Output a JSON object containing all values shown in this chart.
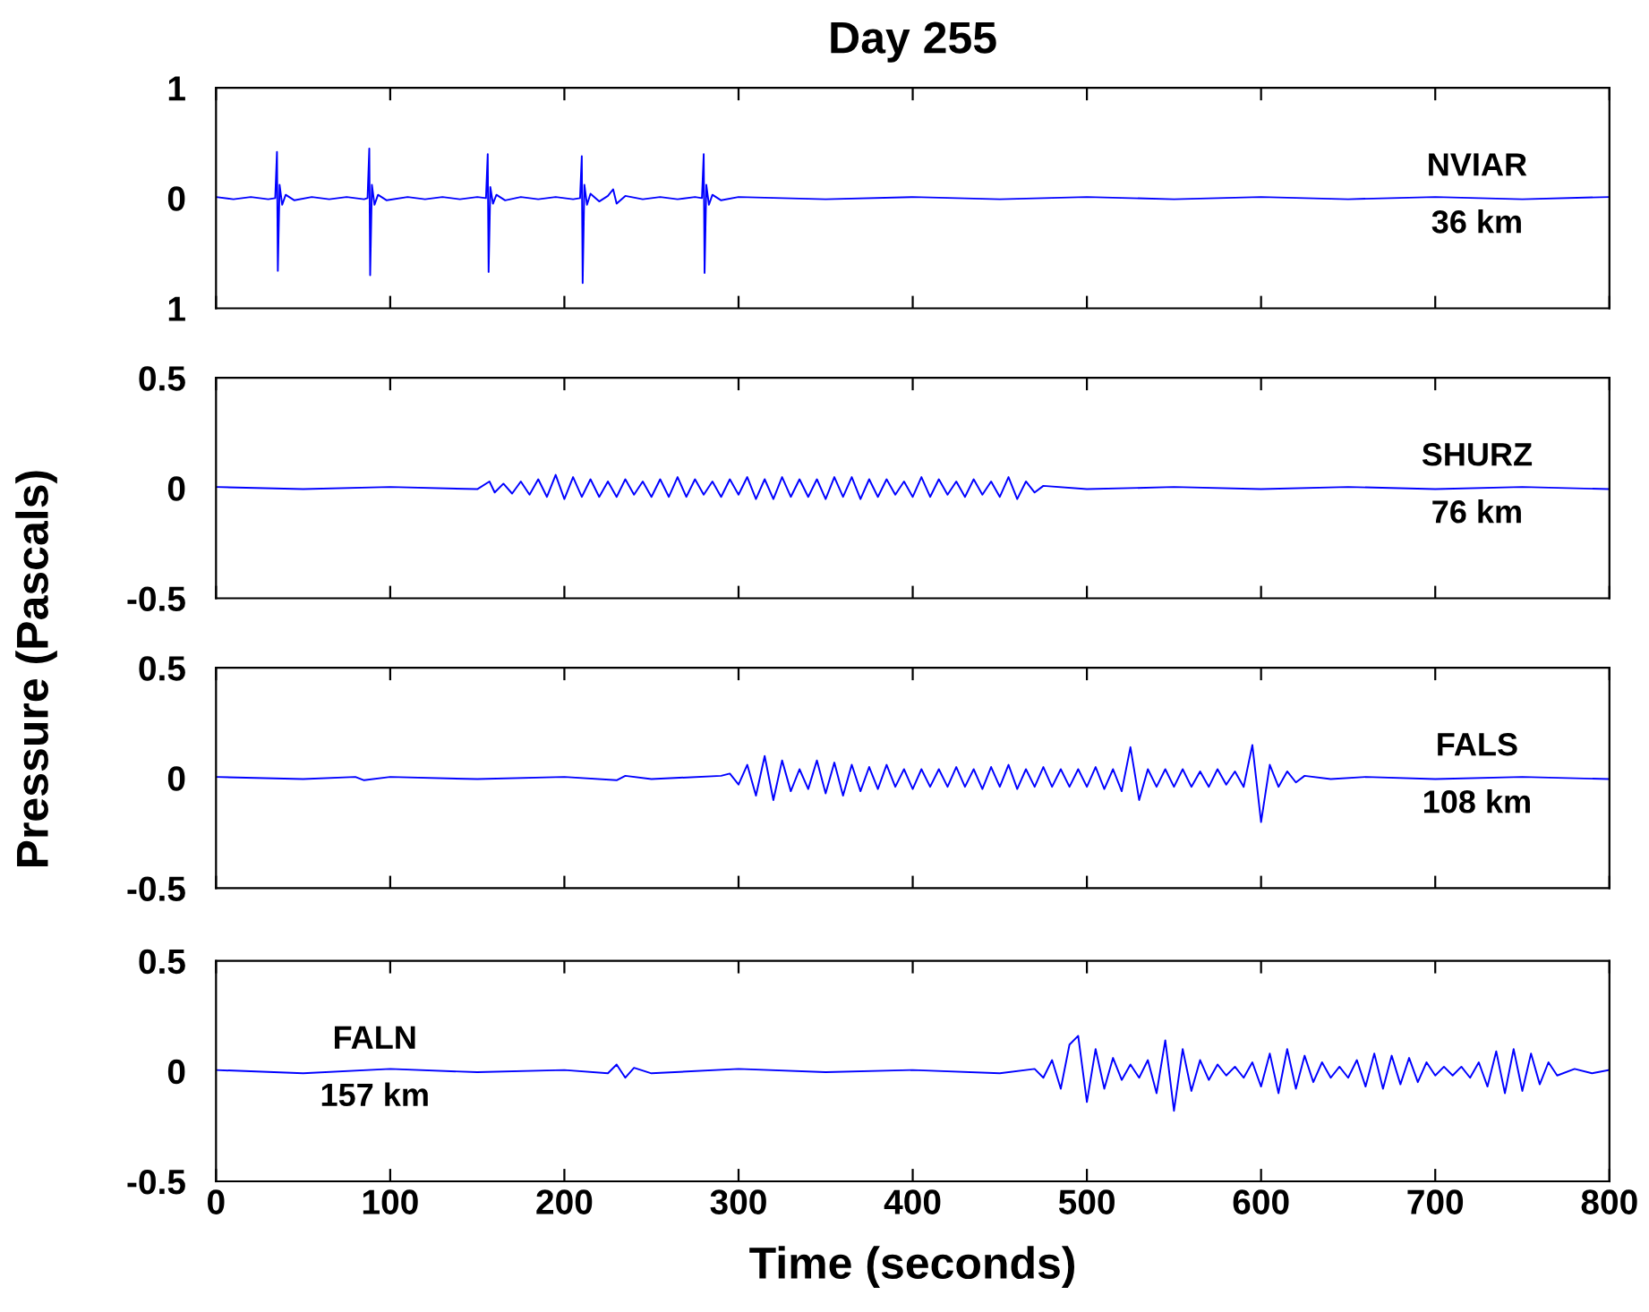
{
  "chart_data": [
    {
      "type": "line",
      "title": "Day 255",
      "annotations": [
        "NVIAR",
        "36 km"
      ],
      "xlim": [
        0,
        800
      ],
      "ylim": [
        -1,
        1
      ],
      "tick_labels": "y",
      "xticks": [
        {
          "value": 0,
          "label": null
        },
        {
          "value": 100,
          "label": null
        },
        {
          "value": 200,
          "label": null
        },
        {
          "value": 300,
          "label": null
        },
        {
          "value": 400,
          "label": null
        },
        {
          "value": 500,
          "label": null
        },
        {
          "value": 600,
          "label": null
        },
        {
          "value": 700,
          "label": null
        },
        {
          "value": 800,
          "label": null
        }
      ],
      "yticks": [
        1,
        0,
        {
          "value": -1,
          "label": "1"
        }
      ],
      "series": [
        {
          "color": "#0000ff",
          "x": [
            0,
            10,
            20,
            30,
            34,
            35,
            35.5,
            36.5,
            38,
            40,
            45,
            55,
            65,
            75,
            85,
            87,
            88,
            88.5,
            89.5,
            91,
            93,
            98,
            110,
            120,
            130,
            140,
            150,
            155,
            156,
            156.5,
            157.5,
            159,
            161,
            166,
            175,
            185,
            195,
            205,
            209,
            210,
            210.5,
            211.5,
            213,
            215,
            220,
            225,
            228,
            230,
            235,
            245,
            255,
            265,
            275,
            279,
            280,
            280.5,
            281.5,
            283,
            285,
            290,
            300,
            350,
            400,
            450,
            500,
            550,
            600,
            650,
            700,
            750,
            800
          ],
          "values": [
            0.01,
            -0.01,
            0.01,
            -0.01,
            0,
            0.42,
            -0.66,
            0.12,
            -0.06,
            0.03,
            -0.02,
            0.01,
            -0.01,
            0.01,
            -0.01,
            0,
            0.45,
            -0.7,
            0.12,
            -0.06,
            0.03,
            -0.02,
            0.01,
            -0.01,
            0.01,
            -0.01,
            0.01,
            0,
            0.4,
            -0.67,
            0.1,
            -0.05,
            0.03,
            -0.02,
            0.01,
            -0.01,
            0.01,
            -0.01,
            0,
            0.38,
            -0.77,
            0.12,
            -0.06,
            0.04,
            -0.03,
            0.02,
            0.08,
            -0.05,
            0.02,
            -0.01,
            0.01,
            -0.01,
            0.01,
            0,
            0.4,
            -0.68,
            0.12,
            -0.06,
            0.03,
            -0.02,
            0.01,
            -0.01,
            0.01,
            -0.01,
            0.01,
            -0.01,
            0.01,
            -0.01,
            0.01,
            -0.01,
            0.01
          ]
        }
      ]
    },
    {
      "type": "line",
      "ylabel": "Pressure (Pascals)",
      "annotations": [
        "SHURZ",
        "76 km"
      ],
      "xlim": [
        0,
        800
      ],
      "ylim": [
        -0.5,
        0.5
      ],
      "tick_labels": "y",
      "xticks": [
        {
          "value": 0,
          "label": null
        },
        {
          "value": 100,
          "label": null
        },
        {
          "value": 200,
          "label": null
        },
        {
          "value": 300,
          "label": null
        },
        {
          "value": 400,
          "label": null
        },
        {
          "value": 500,
          "label": null
        },
        {
          "value": 600,
          "label": null
        },
        {
          "value": 700,
          "label": null
        },
        {
          "value": 800,
          "label": null
        }
      ],
      "yticks": [
        0.5,
        0,
        -0.5
      ],
      "series": [
        {
          "color": "#0000ff",
          "x": [
            0,
            50,
            100,
            150,
            157,
            160,
            165,
            170,
            175,
            180,
            185,
            190,
            195,
            200,
            205,
            210,
            215,
            220,
            225,
            230,
            235,
            240,
            245,
            250,
            255,
            260,
            265,
            270,
            275,
            280,
            285,
            290,
            295,
            300,
            305,
            310,
            315,
            320,
            325,
            330,
            335,
            340,
            345,
            350,
            355,
            360,
            365,
            370,
            375,
            380,
            385,
            390,
            395,
            400,
            405,
            410,
            415,
            420,
            425,
            430,
            435,
            440,
            445,
            450,
            455,
            460,
            465,
            470,
            475,
            500,
            550,
            600,
            650,
            700,
            750,
            800
          ],
          "values": [
            0.005,
            -0.005,
            0.005,
            -0.005,
            0.03,
            -0.02,
            0.02,
            -0.025,
            0.03,
            -0.03,
            0.04,
            -0.04,
            0.06,
            -0.05,
            0.05,
            -0.04,
            0.04,
            -0.04,
            0.03,
            -0.04,
            0.04,
            -0.03,
            0.03,
            -0.04,
            0.04,
            -0.04,
            0.05,
            -0.04,
            0.04,
            -0.03,
            0.03,
            -0.04,
            0.04,
            -0.03,
            0.05,
            -0.05,
            0.04,
            -0.05,
            0.05,
            -0.04,
            0.04,
            -0.04,
            0.04,
            -0.05,
            0.05,
            -0.04,
            0.05,
            -0.05,
            0.04,
            -0.04,
            0.04,
            -0.03,
            0.03,
            -0.04,
            0.05,
            -0.04,
            0.04,
            -0.03,
            0.03,
            -0.04,
            0.04,
            -0.03,
            0.03,
            -0.04,
            0.05,
            -0.05,
            0.03,
            -0.02,
            0.01,
            -0.005,
            0.005,
            -0.005,
            0.005,
            -0.005,
            0.005,
            -0.005
          ]
        }
      ]
    },
    {
      "type": "line",
      "annotations": [
        "FALS",
        "108 km"
      ],
      "xlim": [
        0,
        800
      ],
      "ylim": [
        -0.5,
        0.5
      ],
      "tick_labels": "y",
      "xticks": [
        {
          "value": 0,
          "label": null
        },
        {
          "value": 100,
          "label": null
        },
        {
          "value": 200,
          "label": null
        },
        {
          "value": 300,
          "label": null
        },
        {
          "value": 400,
          "label": null
        },
        {
          "value": 500,
          "label": null
        },
        {
          "value": 600,
          "label": null
        },
        {
          "value": 700,
          "label": null
        },
        {
          "value": 800,
          "label": null
        }
      ],
      "yticks": [
        0.5,
        0,
        -0.5
      ],
      "series": [
        {
          "color": "#0000ff",
          "x": [
            0,
            50,
            80,
            85,
            100,
            150,
            200,
            230,
            235,
            250,
            290,
            295,
            300,
            305,
            310,
            315,
            320,
            325,
            330,
            335,
            340,
            345,
            350,
            355,
            360,
            365,
            370,
            375,
            380,
            385,
            390,
            395,
            400,
            405,
            410,
            415,
            420,
            425,
            430,
            435,
            440,
            445,
            450,
            455,
            460,
            465,
            470,
            475,
            480,
            485,
            490,
            495,
            500,
            505,
            510,
            515,
            520,
            525,
            530,
            535,
            540,
            545,
            550,
            555,
            560,
            565,
            570,
            575,
            580,
            585,
            590,
            595,
            600,
            605,
            610,
            615,
            620,
            625,
            640,
            660,
            700,
            750,
            800
          ],
          "values": [
            0.005,
            -0.005,
            0.005,
            -0.01,
            0.005,
            -0.005,
            0.005,
            -0.01,
            0.01,
            -0.005,
            0.01,
            0.02,
            -0.03,
            0.06,
            -0.08,
            0.1,
            -0.1,
            0.08,
            -0.06,
            0.04,
            -0.05,
            0.08,
            -0.07,
            0.07,
            -0.08,
            0.06,
            -0.06,
            0.05,
            -0.05,
            0.06,
            -0.04,
            0.04,
            -0.05,
            0.04,
            -0.04,
            0.04,
            -0.04,
            0.05,
            -0.04,
            0.04,
            -0.05,
            0.05,
            -0.04,
            0.06,
            -0.05,
            0.04,
            -0.04,
            0.05,
            -0.04,
            0.04,
            -0.04,
            0.04,
            -0.04,
            0.05,
            -0.05,
            0.04,
            -0.06,
            0.14,
            -0.1,
            0.04,
            -0.04,
            0.04,
            -0.04,
            0.04,
            -0.04,
            0.03,
            -0.04,
            0.04,
            -0.03,
            0.03,
            -0.04,
            0.15,
            -0.2,
            0.06,
            -0.04,
            0.03,
            -0.02,
            0.01,
            -0.005,
            0.005,
            -0.005,
            0.005,
            -0.005
          ]
        }
      ]
    },
    {
      "type": "line",
      "xlabel": "Time (seconds)",
      "annotations": [
        "FALN",
        "157 km"
      ],
      "xlim": [
        0,
        800
      ],
      "ylim": [
        -0.5,
        0.5
      ],
      "xticks": [
        0,
        100,
        200,
        300,
        400,
        500,
        600,
        700,
        800
      ],
      "yticks": [
        0.5,
        0,
        -0.5
      ],
      "series": [
        {
          "color": "#0000ff",
          "x": [
            0,
            50,
            100,
            150,
            200,
            225,
            230,
            235,
            240,
            250,
            300,
            350,
            400,
            450,
            470,
            475,
            480,
            485,
            490,
            495,
            500,
            505,
            510,
            515,
            520,
            525,
            530,
            535,
            540,
            545,
            550,
            555,
            560,
            565,
            570,
            575,
            580,
            585,
            590,
            595,
            600,
            605,
            610,
            615,
            620,
            625,
            630,
            635,
            640,
            645,
            650,
            655,
            660,
            665,
            670,
            675,
            680,
            685,
            690,
            695,
            700,
            705,
            710,
            715,
            720,
            725,
            730,
            735,
            740,
            745,
            750,
            755,
            760,
            765,
            770,
            780,
            790,
            800
          ],
          "values": [
            0.005,
            -0.01,
            0.01,
            -0.005,
            0.005,
            -0.01,
            0.03,
            -0.03,
            0.015,
            -0.01,
            0.01,
            -0.005,
            0.005,
            -0.01,
            0.01,
            -0.03,
            0.05,
            -0.08,
            0.12,
            0.16,
            -0.14,
            0.1,
            -0.08,
            0.06,
            -0.04,
            0.03,
            -0.03,
            0.05,
            -0.1,
            0.14,
            -0.18,
            0.1,
            -0.09,
            0.05,
            -0.04,
            0.03,
            -0.02,
            0.02,
            -0.03,
            0.04,
            -0.07,
            0.08,
            -0.1,
            0.1,
            -0.08,
            0.07,
            -0.05,
            0.04,
            -0.03,
            0.02,
            -0.03,
            0.05,
            -0.07,
            0.08,
            -0.08,
            0.07,
            -0.06,
            0.06,
            -0.05,
            0.04,
            -0.02,
            0.02,
            -0.02,
            0.02,
            -0.03,
            0.04,
            -0.07,
            0.09,
            -0.1,
            0.1,
            -0.09,
            0.08,
            -0.06,
            0.04,
            -0.02,
            0.01,
            -0.01,
            0.005
          ]
        }
      ]
    }
  ]
}
